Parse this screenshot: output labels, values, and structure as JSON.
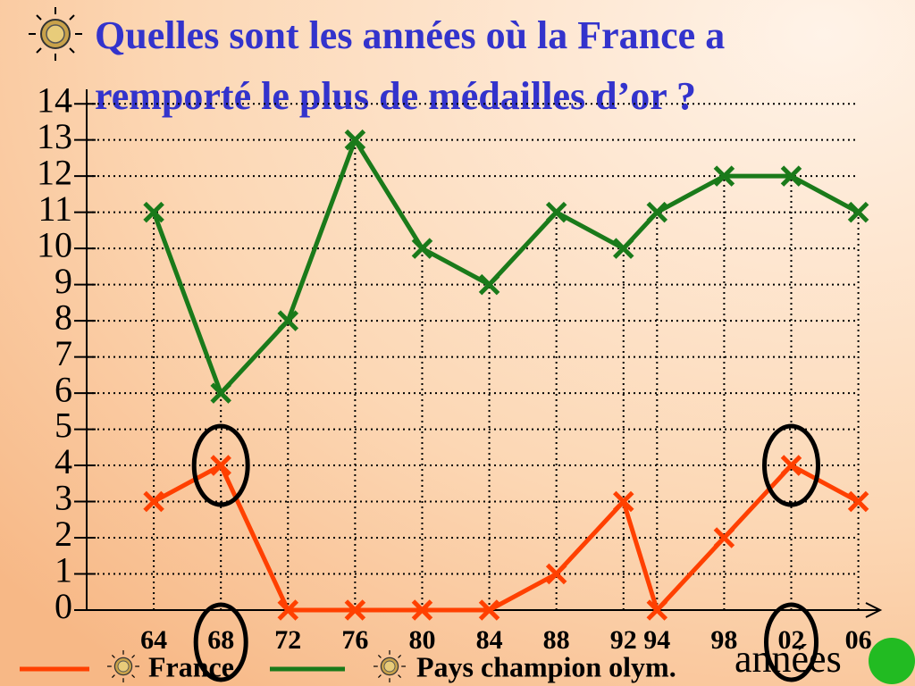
{
  "chart_data": {
    "type": "line",
    "title": "Quelles sont les années où la France a remporté le plus de médailles d’or ?",
    "x_label": "années",
    "x": [
      1964,
      1968,
      1972,
      1976,
      1980,
      1984,
      1988,
      1992,
      1994,
      1998,
      2002,
      2006
    ],
    "series": [
      {
        "name": "France",
        "color": "#ff4000",
        "values": [
          3,
          4,
          0,
          0,
          0,
          0,
          1,
          3,
          0,
          2,
          4,
          3
        ]
      },
      {
        "name": "Pays champion olym.",
        "color": "#1a7a1a",
        "values": [
          11,
          6,
          8,
          13,
          10,
          9,
          11,
          10,
          11,
          12,
          12,
          11
        ]
      }
    ],
    "xlim": [
      1960,
      2007.3
    ],
    "xticks": [
      {
        "value": 1964,
        "label": "64"
      },
      {
        "value": 1968,
        "label": "68"
      },
      {
        "value": 1972,
        "label": "72"
      },
      {
        "value": 1976,
        "label": "76"
      },
      {
        "value": 1980,
        "label": "80"
      },
      {
        "value": 1984,
        "label": "84"
      },
      {
        "value": 1988,
        "label": "88"
      },
      {
        "value": 1992,
        "label": "92"
      },
      {
        "value": 1994,
        "label": "94"
      },
      {
        "value": 1998,
        "label": "98"
      },
      {
        "value": 2002,
        "label": "02"
      },
      {
        "value": 2006,
        "label": "06"
      }
    ],
    "ylim": [
      0,
      14.4
    ],
    "yticks": [
      0,
      1,
      2,
      3,
      4,
      5,
      6,
      7,
      8,
      9,
      10,
      11,
      12,
      13,
      14
    ],
    "grid": true
  }
}
